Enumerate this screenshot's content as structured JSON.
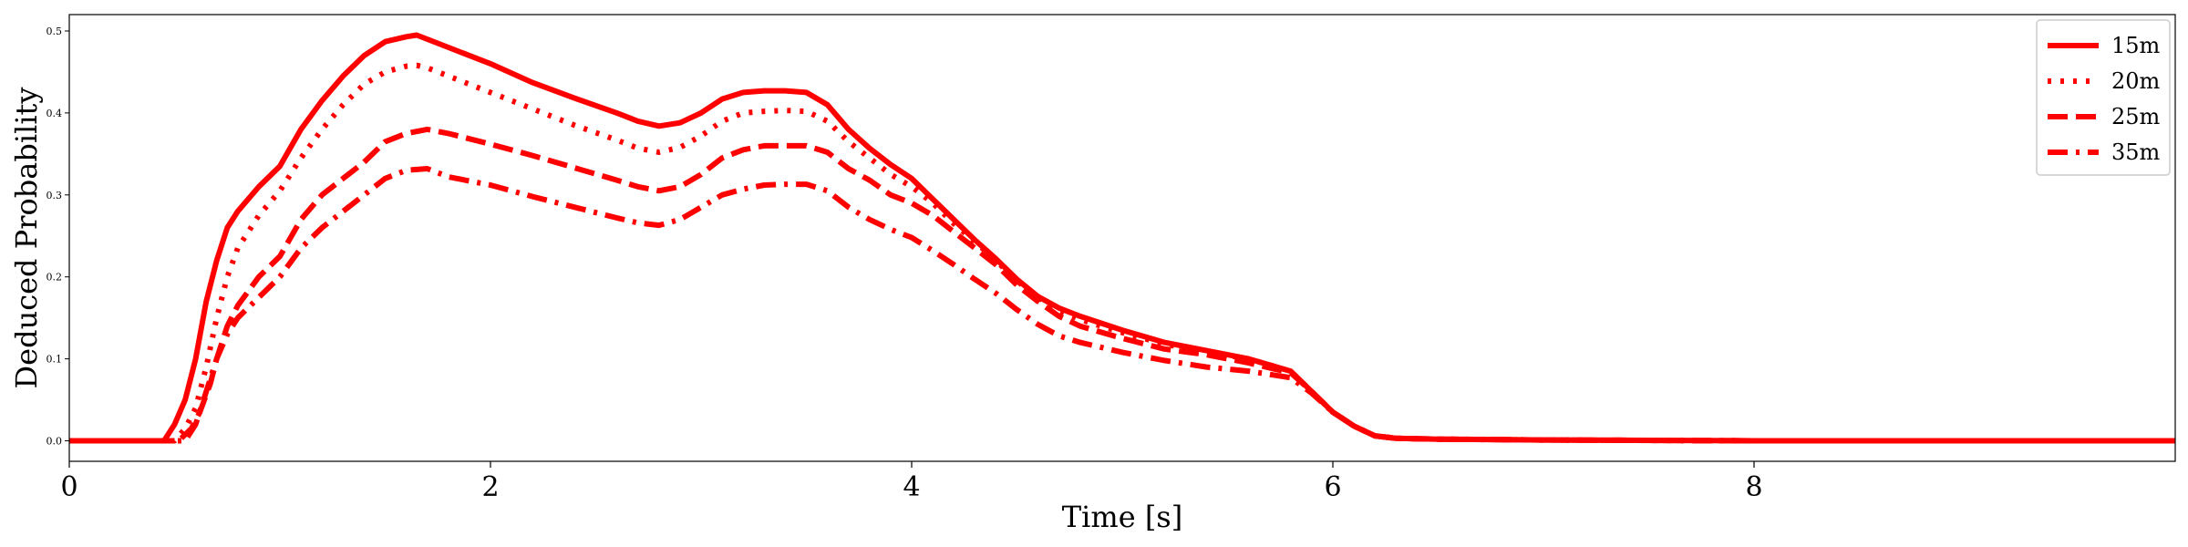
{
  "chart_data": {
    "type": "line",
    "title": "",
    "xlabel": "Time [s]",
    "ylabel": "Deduced Probability",
    "xlim": [
      0,
      10
    ],
    "ylim": [
      -0.025,
      0.52
    ],
    "xticks": [
      0,
      2,
      4,
      6,
      8
    ],
    "xtick_labels": [
      "0",
      "2",
      "4",
      "6",
      "8"
    ],
    "yticks": [
      0.0,
      0.1,
      0.2,
      0.3,
      0.4,
      0.5
    ],
    "ytick_labels": [
      "0.0",
      "0.1",
      "0.2",
      "0.3",
      "0.4",
      "0.5"
    ],
    "grid": false,
    "legend_position": "top-right",
    "color": "#ff0000",
    "series": [
      {
        "name": "15m",
        "style": "solid",
        "x": [
          0,
          0.3,
          0.45,
          0.5,
          0.55,
          0.6,
          0.65,
          0.7,
          0.75,
          0.8,
          0.9,
          1.0,
          1.1,
          1.2,
          1.3,
          1.4,
          1.5,
          1.6,
          1.65,
          1.7,
          1.8,
          2.0,
          2.2,
          2.4,
          2.6,
          2.7,
          2.8,
          2.9,
          3.0,
          3.1,
          3.2,
          3.3,
          3.4,
          3.5,
          3.6,
          3.7,
          3.8,
          3.9,
          4.0,
          4.1,
          4.2,
          4.3,
          4.4,
          4.5,
          4.6,
          4.7,
          4.8,
          5.0,
          5.2,
          5.4,
          5.6,
          5.8,
          5.9,
          6.0,
          6.1,
          6.2,
          6.3,
          6.5,
          7.0,
          8.0,
          9.0,
          10.0
        ],
        "y": [
          0.0,
          0.0,
          0.0,
          0.02,
          0.05,
          0.1,
          0.17,
          0.22,
          0.26,
          0.28,
          0.31,
          0.335,
          0.38,
          0.415,
          0.445,
          0.47,
          0.487,
          0.493,
          0.495,
          0.49,
          0.48,
          0.46,
          0.437,
          0.418,
          0.4,
          0.39,
          0.384,
          0.388,
          0.4,
          0.417,
          0.425,
          0.427,
          0.427,
          0.425,
          0.41,
          0.38,
          0.357,
          0.337,
          0.32,
          0.295,
          0.27,
          0.245,
          0.222,
          0.197,
          0.176,
          0.162,
          0.152,
          0.135,
          0.12,
          0.11,
          0.1,
          0.085,
          0.06,
          0.035,
          0.018,
          0.006,
          0.003,
          0.002,
          0.001,
          0.0,
          0.0,
          0.0
        ]
      },
      {
        "name": "20m",
        "style": "dotted",
        "x": [
          0,
          0.3,
          0.5,
          0.55,
          0.6,
          0.65,
          0.7,
          0.75,
          0.8,
          0.9,
          1.0,
          1.1,
          1.2,
          1.3,
          1.4,
          1.5,
          1.6,
          1.65,
          1.7,
          1.8,
          2.0,
          2.2,
          2.4,
          2.6,
          2.7,
          2.8,
          2.9,
          3.0,
          3.1,
          3.2,
          3.3,
          3.4,
          3.5,
          3.6,
          3.7,
          3.8,
          3.9,
          4.0,
          4.1,
          4.2,
          4.3,
          4.4,
          4.5,
          4.6,
          4.7,
          4.8,
          5.0,
          5.2,
          5.4,
          5.6,
          5.8,
          5.9,
          6.0,
          6.1,
          6.2,
          6.3,
          6.5,
          7.0,
          8.0,
          9.0,
          10.0
        ],
        "y": [
          0.0,
          0.0,
          0.0,
          0.015,
          0.04,
          0.09,
          0.15,
          0.2,
          0.235,
          0.275,
          0.305,
          0.345,
          0.38,
          0.41,
          0.435,
          0.45,
          0.457,
          0.458,
          0.455,
          0.445,
          0.425,
          0.405,
          0.385,
          0.367,
          0.357,
          0.352,
          0.358,
          0.372,
          0.39,
          0.4,
          0.402,
          0.403,
          0.402,
          0.39,
          0.365,
          0.345,
          0.325,
          0.31,
          0.29,
          0.265,
          0.243,
          0.22,
          0.195,
          0.175,
          0.158,
          0.148,
          0.132,
          0.118,
          0.108,
          0.1,
          0.085,
          0.06,
          0.035,
          0.018,
          0.006,
          0.003,
          0.002,
          0.001,
          0.0,
          0.0,
          0.0
        ]
      },
      {
        "name": "25m",
        "style": "dashed",
        "x": [
          0,
          0.3,
          0.52,
          0.58,
          0.62,
          0.67,
          0.7,
          0.75,
          0.8,
          0.9,
          1.0,
          1.1,
          1.2,
          1.3,
          1.4,
          1.5,
          1.6,
          1.7,
          1.8,
          2.0,
          2.2,
          2.4,
          2.6,
          2.7,
          2.8,
          2.9,
          3.0,
          3.1,
          3.2,
          3.3,
          3.4,
          3.5,
          3.6,
          3.7,
          3.8,
          3.9,
          4.0,
          4.1,
          4.2,
          4.3,
          4.4,
          4.5,
          4.6,
          4.7,
          4.8,
          5.0,
          5.2,
          5.4,
          5.6,
          5.8,
          5.9,
          6.0,
          6.1,
          6.2,
          6.3,
          6.5,
          7.0,
          8.0,
          9.0,
          10.0
        ],
        "y": [
          0.0,
          0.0,
          0.0,
          0.015,
          0.035,
          0.07,
          0.1,
          0.14,
          0.165,
          0.2,
          0.225,
          0.27,
          0.3,
          0.32,
          0.34,
          0.365,
          0.375,
          0.38,
          0.375,
          0.362,
          0.348,
          0.333,
          0.318,
          0.31,
          0.305,
          0.31,
          0.325,
          0.345,
          0.355,
          0.36,
          0.36,
          0.36,
          0.352,
          0.332,
          0.318,
          0.3,
          0.29,
          0.275,
          0.255,
          0.235,
          0.215,
          0.19,
          0.17,
          0.152,
          0.14,
          0.125,
          0.112,
          0.105,
          0.095,
          0.083,
          0.06,
          0.035,
          0.018,
          0.006,
          0.003,
          0.002,
          0.001,
          0.0,
          0.0,
          0.0
        ]
      },
      {
        "name": "35m",
        "style": "dashdot",
        "x": [
          0,
          0.3,
          0.55,
          0.6,
          0.65,
          0.7,
          0.75,
          0.8,
          0.9,
          1.0,
          1.1,
          1.2,
          1.3,
          1.4,
          1.5,
          1.6,
          1.7,
          1.8,
          2.0,
          2.2,
          2.4,
          2.6,
          2.7,
          2.8,
          2.9,
          3.0,
          3.1,
          3.2,
          3.3,
          3.4,
          3.5,
          3.6,
          3.7,
          3.8,
          3.9,
          4.0,
          4.1,
          4.2,
          4.3,
          4.4,
          4.5,
          4.6,
          4.7,
          4.8,
          5.0,
          5.2,
          5.4,
          5.6,
          5.8,
          5.9,
          6.0,
          6.1,
          6.2,
          6.3,
          6.5,
          7.0,
          8.0,
          9.0,
          10.0
        ],
        "y": [
          0.0,
          0.0,
          0.0,
          0.02,
          0.06,
          0.1,
          0.13,
          0.15,
          0.175,
          0.2,
          0.235,
          0.26,
          0.28,
          0.3,
          0.32,
          0.33,
          0.332,
          0.322,
          0.312,
          0.298,
          0.285,
          0.272,
          0.266,
          0.263,
          0.27,
          0.285,
          0.3,
          0.307,
          0.312,
          0.313,
          0.313,
          0.305,
          0.285,
          0.27,
          0.258,
          0.248,
          0.232,
          0.215,
          0.197,
          0.18,
          0.16,
          0.142,
          0.128,
          0.12,
          0.108,
          0.098,
          0.09,
          0.085,
          0.077,
          0.058,
          0.035,
          0.018,
          0.006,
          0.003,
          0.002,
          0.001,
          0.0,
          0.0,
          0.0
        ]
      }
    ]
  }
}
